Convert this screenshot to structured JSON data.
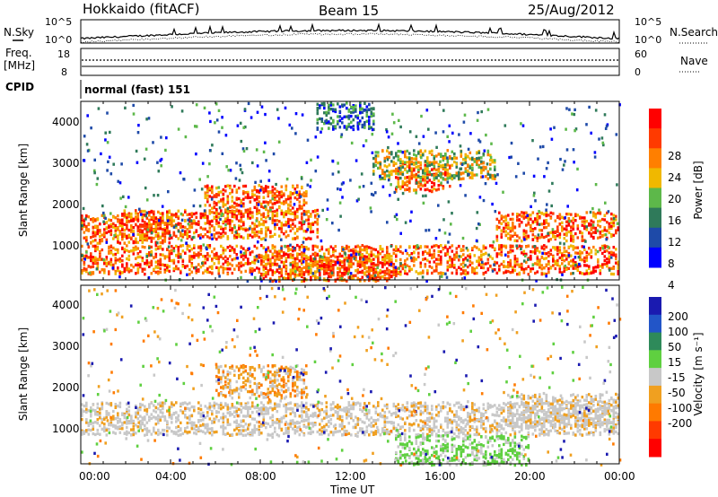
{
  "header": {
    "station": "Hokkaido (fitACF)",
    "beam": "Beam 15",
    "date": "25/Aug/2012"
  },
  "noise_panel": {
    "left_label": "N.Sky",
    "right_label": "N.Search",
    "left_ticks": [
      "10^5",
      "10^0"
    ],
    "right_ticks": [
      "10^5",
      "10^0"
    ]
  },
  "freq_panel": {
    "left_label_1": "Freq.",
    "left_label_2": "[MHz]",
    "left_ticks": [
      "18",
      "8"
    ],
    "right_label": "Nave",
    "right_ticks": [
      "60",
      "0"
    ]
  },
  "cpid_panel": {
    "label": "CPID",
    "value": "normal (fast) 151"
  },
  "axes": {
    "ylabel": "Slant Range [km]",
    "y_ticks": [
      "4000",
      "3000",
      "2000",
      "1000"
    ],
    "x_ticks": [
      "00:00",
      "04:00",
      "08:00",
      "12:00",
      "16:00",
      "20:00",
      "00:00"
    ],
    "xlabel": "Time UT"
  },
  "power_scale": {
    "label": "Power [dB]",
    "ticks": [
      "28",
      "24",
      "20",
      "16",
      "12",
      "8",
      "4"
    ],
    "colors": [
      "#0000ff",
      "#1e4aa8",
      "#2f7a5a",
      "#5db84a",
      "#f0b800",
      "#ff7f00",
      "#ff3a00",
      "#ff0000"
    ]
  },
  "velocity_scale": {
    "label": "Velocity [m s⁻¹]",
    "ticks": [
      "200",
      "100",
      "50",
      "15",
      "-15",
      "-50",
      "-100",
      "-200"
    ],
    "colors": [
      "#1a1ab0",
      "#2255c8",
      "#2e8a5a",
      "#5fd040",
      "#c8c8c8",
      "#f0a020",
      "#ff7a00",
      "#ff3a00",
      "#ff0000"
    ]
  },
  "chart_data": {
    "type": "heatmap",
    "x": [
      "00:00",
      "04:00",
      "08:00",
      "12:00",
      "16:00",
      "20:00",
      "00:00"
    ],
    "xlabel": "Time UT",
    "ylabel": "Slant Range [km]",
    "ylim": [
      180,
      4500
    ],
    "power_bands": [
      {
        "t0": 0.0,
        "t1": 4.0,
        "r": 1450,
        "v": "high"
      },
      {
        "t0": 1.5,
        "t1": 10.5,
        "r": 1550,
        "v": "high"
      },
      {
        "t0": 0.0,
        "t1": 24.0,
        "r": 700,
        "v": "high"
      },
      {
        "t0": 8.0,
        "t1": 14.0,
        "r": 500,
        "v": "high"
      },
      {
        "t0": 5.5,
        "t1": 10.0,
        "r": 2150,
        "v": "high"
      },
      {
        "t0": 14.0,
        "t1": 16.5,
        "r": 2700,
        "v": "high"
      },
      {
        "t0": 18.5,
        "t1": 24.0,
        "r": 1500,
        "v": "high"
      },
      {
        "t0": 13.0,
        "t1": 18.5,
        "r": 3000,
        "v": "medium"
      },
      {
        "t0": 10.5,
        "t1": 13.0,
        "r": 4200,
        "v": "low"
      }
    ],
    "velocity_bands": [
      {
        "t0": 0.0,
        "t1": 24.0,
        "r": 1300,
        "v": "-15 to 15"
      },
      {
        "t0": 14.0,
        "t1": 20.0,
        "r": 500,
        "v": "15 to 50"
      },
      {
        "t0": 6.0,
        "t1": 10.0,
        "r": 2200,
        "v": "-50 to -15"
      },
      {
        "t0": 19.0,
        "t1": 24.0,
        "r": 1500,
        "v": "-15 to 15"
      }
    ]
  }
}
